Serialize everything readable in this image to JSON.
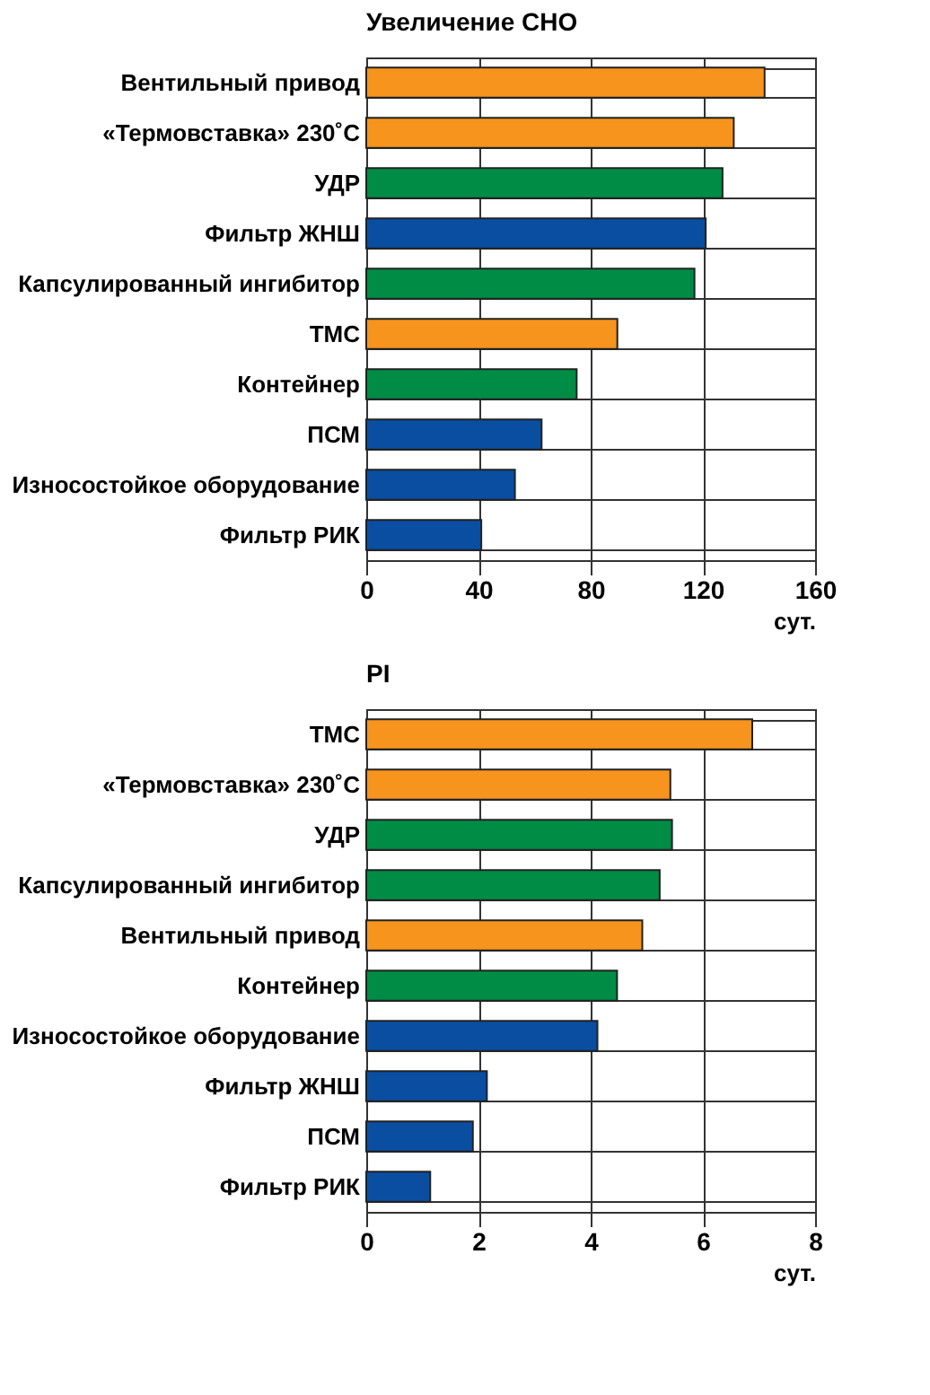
{
  "chart_data": [
    {
      "type": "bar",
      "orientation": "horizontal",
      "title": "Увеличение СНО",
      "xlabel": "сут.",
      "categories": [
        "Вентильный привод",
        "«Термовставка» 230˚С",
        "УДР",
        "Фильтр ЖНШ",
        "Капсулированный ингибитор",
        "ТМС",
        "Контейнер",
        "ПСМ",
        "Износостойкое оборудование",
        "Фильтр РИК"
      ],
      "values": [
        142,
        131,
        127,
        121,
        117,
        89.5,
        75,
        62.5,
        53,
        41
      ],
      "colors": [
        "#f7941d",
        "#f7941d",
        "#008c45",
        "#0a4ea2",
        "#008c45",
        "#f7941d",
        "#008c45",
        "#0a4ea2",
        "#0a4ea2",
        "#0a4ea2"
      ],
      "xlim": [
        0,
        160
      ],
      "xticks": [
        0,
        40,
        80,
        120,
        160
      ],
      "grid": true
    },
    {
      "type": "bar",
      "orientation": "horizontal",
      "title": "PI",
      "xlabel": "сут.",
      "categories": [
        "ТМС",
        "«Термовставка» 230˚С",
        "УДР",
        "Капсулированный ингибитор",
        "Вентильный привод",
        "Контейнер",
        "Износостойкое оборудование",
        "Фильтр ЖНШ",
        "ПСМ",
        "Фильтр РИК"
      ],
      "values": [
        6.88,
        5.42,
        5.45,
        5.23,
        4.92,
        4.47,
        4.12,
        2.15,
        1.9,
        1.14
      ],
      "colors": [
        "#f7941d",
        "#f7941d",
        "#008c45",
        "#008c45",
        "#f7941d",
        "#008c45",
        "#0a4ea2",
        "#0a4ea2",
        "#0a4ea2",
        "#0a4ea2"
      ],
      "xlim": [
        0,
        8
      ],
      "xticks": [
        0,
        2,
        4,
        6,
        8
      ],
      "grid": true
    }
  ]
}
